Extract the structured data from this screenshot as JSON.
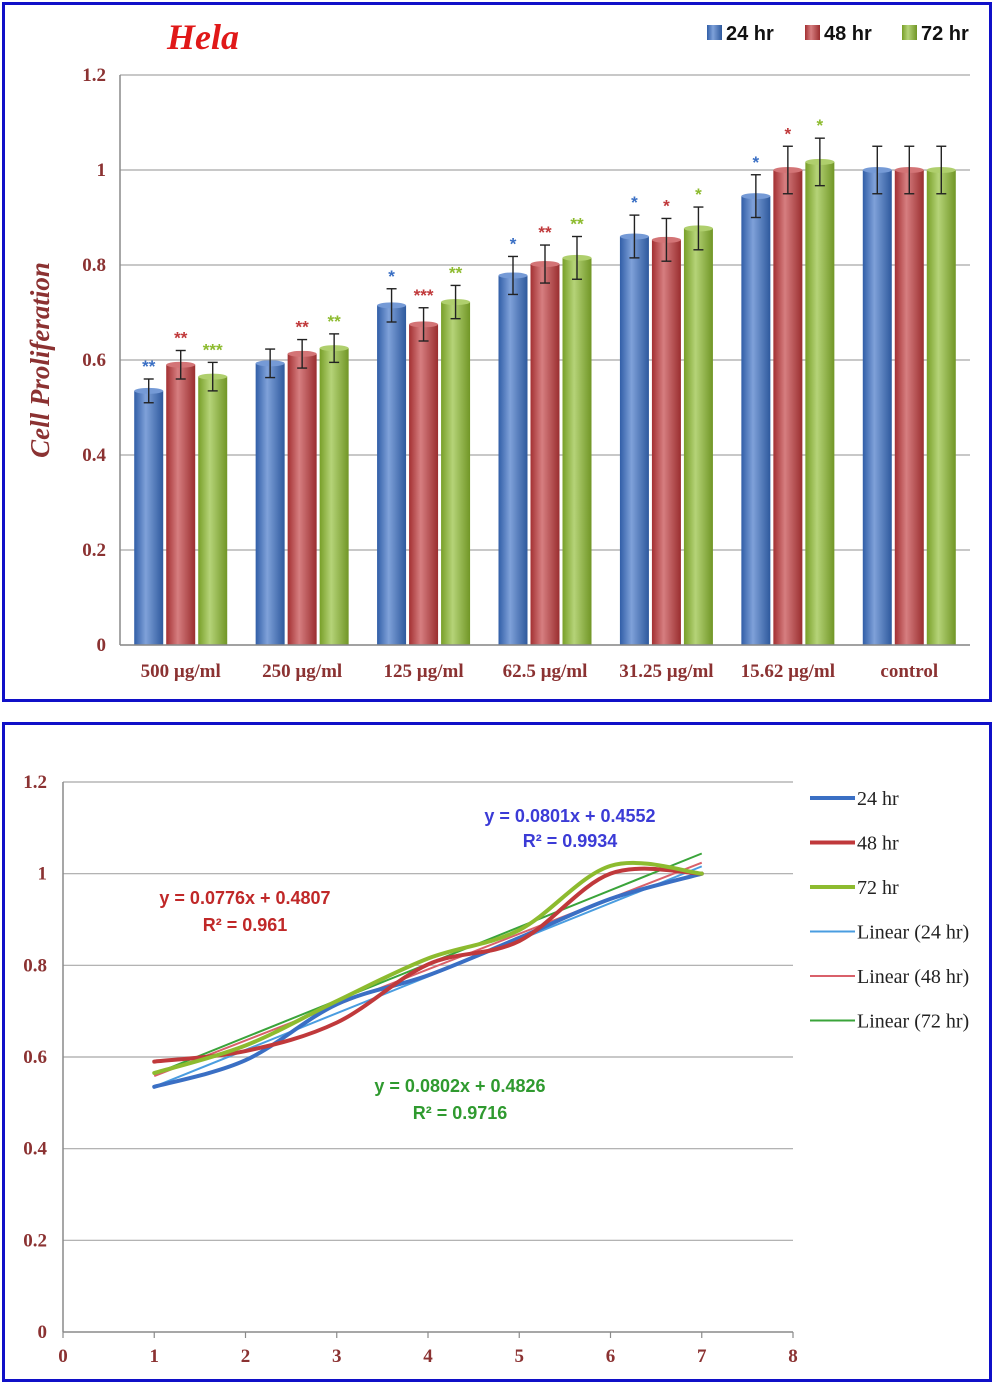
{
  "chart_data": [
    {
      "type": "bar",
      "title": "Hela",
      "ylabel": "Cell Proliferation",
      "xlabel": "",
      "ylim": [
        0,
        1.2
      ],
      "yticks": [
        "0",
        "0.2",
        "0.4",
        "0.6",
        "0.8",
        "1",
        "1.2"
      ],
      "grid": true,
      "legend_position": "top-right",
      "categories": [
        "500 µg/ml",
        "250 µg/ml",
        "125 µg/ml",
        "62.5 µg/ml",
        "31.25 µg/ml",
        "15.62 µg/ml",
        "control"
      ],
      "series": [
        {
          "name": "24 hr",
          "color": "#3a6fc4",
          "values": [
            0.535,
            0.593,
            0.715,
            0.778,
            0.86,
            0.945,
            1.0
          ],
          "errors": [
            0.025,
            0.03,
            0.035,
            0.04,
            0.045,
            0.045,
            0.05
          ],
          "significance": [
            "**",
            "",
            "*",
            "*",
            "*",
            "*",
            ""
          ]
        },
        {
          "name": "48 hr",
          "color": "#c0393b",
          "values": [
            0.59,
            0.613,
            0.675,
            0.802,
            0.853,
            1.0,
            1.0
          ],
          "errors": [
            0.03,
            0.03,
            0.035,
            0.04,
            0.045,
            0.05,
            0.05
          ],
          "significance": [
            "**",
            "**",
            "***",
            "**",
            "*",
            "*",
            ""
          ]
        },
        {
          "name": "72 hr",
          "color": "#8dbb2f",
          "values": [
            0.565,
            0.625,
            0.722,
            0.815,
            0.877,
            1.017,
            1.0
          ],
          "errors": [
            0.03,
            0.03,
            0.035,
            0.045,
            0.045,
            0.05,
            0.05
          ],
          "significance": [
            "***",
            "**",
            "**",
            "**",
            "*",
            "*",
            ""
          ]
        }
      ]
    },
    {
      "type": "line",
      "title": "",
      "xlim": [
        0,
        8
      ],
      "ylim": [
        0,
        1.2
      ],
      "xticks": [
        "0",
        "1",
        "2",
        "3",
        "4",
        "5",
        "6",
        "7",
        "8"
      ],
      "yticks": [
        "0",
        "0.2",
        "0.4",
        "0.6",
        "0.8",
        "1",
        "1.2"
      ],
      "grid": true,
      "legend_position": "right",
      "x": [
        1,
        2,
        3,
        4,
        5,
        6,
        7
      ],
      "series": [
        {
          "name": "24 hr",
          "color": "#3a6fc4",
          "values": [
            0.535,
            0.593,
            0.715,
            0.778,
            0.86,
            0.945,
            1.0
          ]
        },
        {
          "name": "48 hr",
          "color": "#c0393b",
          "values": [
            0.59,
            0.613,
            0.675,
            0.802,
            0.853,
            1.0,
            1.0
          ]
        },
        {
          "name": "72 hr",
          "color": "#8dbb2f",
          "values": [
            0.565,
            0.625,
            0.722,
            0.815,
            0.877,
            1.017,
            1.0
          ]
        }
      ],
      "trendlines": [
        {
          "name": "Linear (24 hr)",
          "color": "#4a9de0",
          "slope": 0.0801,
          "intercept": 0.4552,
          "equation": "y = 0.0801x + 0.4552",
          "r2": "R² = 0.9934",
          "label_color": "#3b3bd6"
        },
        {
          "name": "Linear (48 hr)",
          "color": "#d9606a",
          "slope": 0.0776,
          "intercept": 0.4807,
          "equation": "y = 0.0776x + 0.4807",
          "r2": "R² = 0.961",
          "label_color": "#c02828"
        },
        {
          "name": "Linear (72 hr)",
          "color": "#3aa43a",
          "slope": 0.0802,
          "intercept": 0.4826,
          "equation": "y = 0.0802x + 0.4826",
          "r2": "R² = 0.9716",
          "label_color": "#2f9a2f"
        }
      ]
    }
  ]
}
